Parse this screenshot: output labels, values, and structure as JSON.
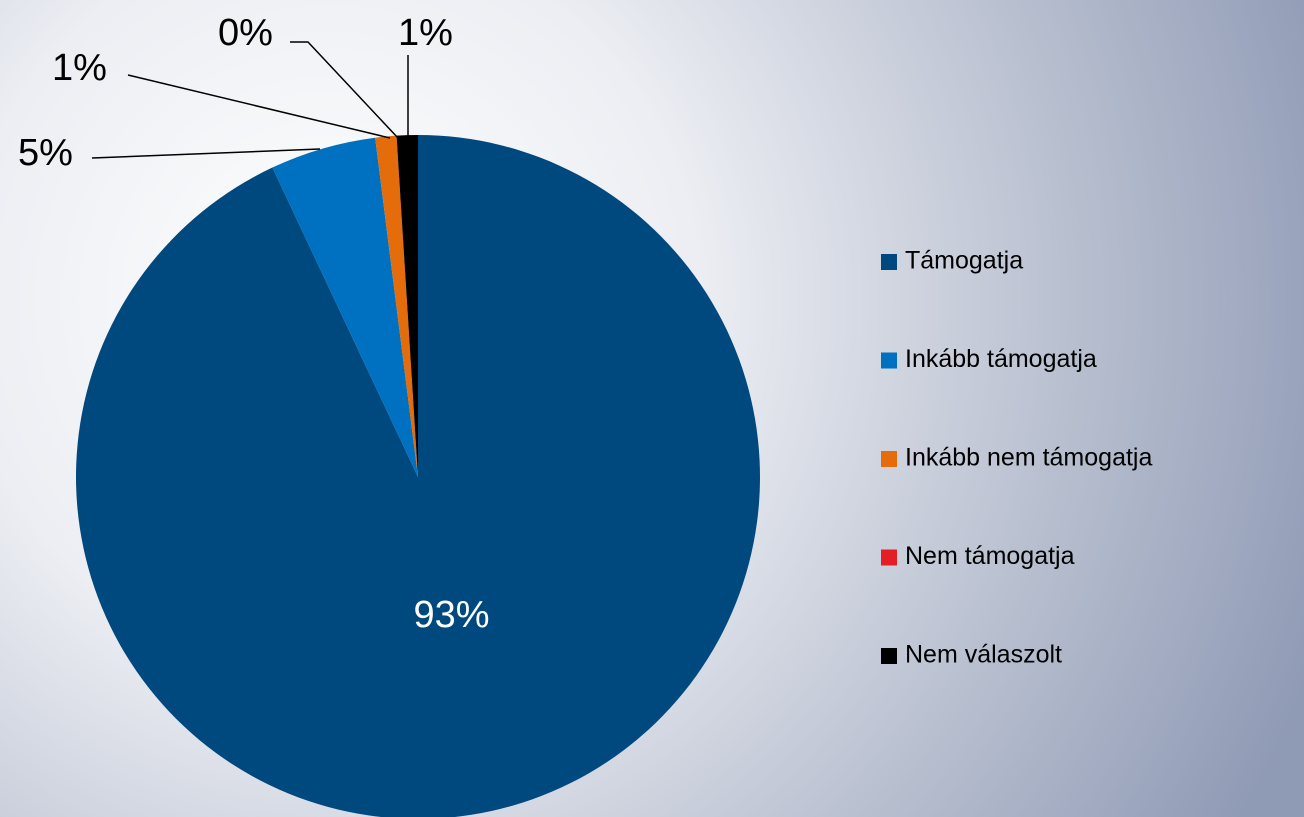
{
  "chart_data": {
    "type": "pie",
    "categories": [
      "Támogatja",
      "Inkább támogatja",
      "Inkább nem támogatja",
      "Nem támogatja",
      "Nem válaszolt"
    ],
    "values": [
      93,
      5,
      1,
      0,
      1
    ],
    "value_labels": [
      "93%",
      "5%",
      "1%",
      "0%",
      "1%"
    ],
    "colors": [
      "#00497f",
      "#0070c0",
      "#e46c0a",
      "#e31e24",
      "#000000"
    ],
    "legend": "right"
  }
}
